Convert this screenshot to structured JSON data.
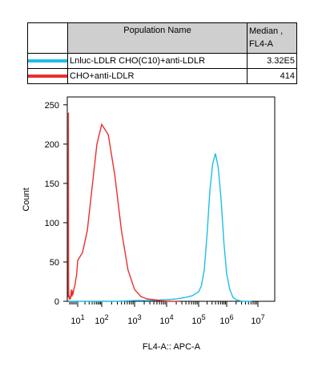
{
  "legend": {
    "header_name": "Population Name",
    "header_value": "Median ,\nFL4-A",
    "rows": [
      {
        "name": "Lnluc-LDLR CHO(C10)+anti-LDLR",
        "value": "3.32E5",
        "color": "#1fbde8"
      },
      {
        "name": "CHO+anti-LDLR",
        "value": "414",
        "color": "#e8302f"
      }
    ]
  },
  "chart_data": {
    "type": "line",
    "xlabel": "FL4-A:: APC-A",
    "ylabel": "Count",
    "xscale": "log",
    "xlim": [
      -2,
      7.2
    ],
    "ylim": [
      0,
      260
    ],
    "yticks": [
      0,
      50,
      100,
      150,
      200,
      250
    ],
    "xticks": [
      {
        "base": "10",
        "exp": "1"
      },
      {
        "base": "10",
        "exp": "2"
      },
      {
        "base": "10",
        "exp": "3"
      },
      {
        "base": "10",
        "exp": "4"
      },
      {
        "base": "10",
        "exp": "5"
      },
      {
        "base": "10",
        "exp": "6"
      },
      {
        "base": "10",
        "exp": "7"
      }
    ],
    "series": [
      {
        "name": "Lnluc-LDLR CHO(C10)+anti-LDLR",
        "color": "#1fbde8",
        "x": [
          -1.8,
          0,
          1.5,
          2.5,
          3.0,
          3.5,
          4.0,
          4.3,
          4.6,
          4.8,
          5.0,
          5.1,
          5.2,
          5.3,
          5.4,
          5.5,
          5.6,
          5.7,
          5.8,
          5.9,
          6.0,
          6.1,
          6.2,
          6.3,
          6.5,
          6.8
        ],
        "y": [
          0,
          0,
          0,
          0,
          1,
          1,
          2,
          3,
          5,
          7,
          12,
          20,
          40,
          85,
          140,
          175,
          188,
          170,
          130,
          75,
          35,
          15,
          5,
          2,
          0,
          0
        ]
      },
      {
        "name": "CHO+anti-LDLR",
        "color": "#e8302f",
        "x": [
          -1.95,
          -1.9,
          -1.85,
          -1.8,
          -1.7,
          -1.6,
          -1.4,
          -1.2,
          -1.0,
          -0.8,
          -0.6,
          -0.4,
          -0.2,
          0.0,
          0.2,
          0.4,
          0.6,
          0.8,
          1.0,
          1.2,
          1.4,
          1.6,
          1.8,
          2.0,
          2.2,
          2.4,
          2.6,
          2.8,
          3.0,
          3.2,
          3.4,
          3.6,
          3.8,
          4.0,
          4.4
        ],
        "y": [
          5,
          240,
          30,
          5,
          8,
          2,
          5,
          4,
          15,
          6,
          12,
          10,
          16,
          18,
          22,
          28,
          32,
          40,
          52,
          62,
          90,
          145,
          200,
          225,
          212,
          160,
          90,
          40,
          15,
          6,
          3,
          2,
          1,
          0,
          0
        ]
      }
    ]
  }
}
